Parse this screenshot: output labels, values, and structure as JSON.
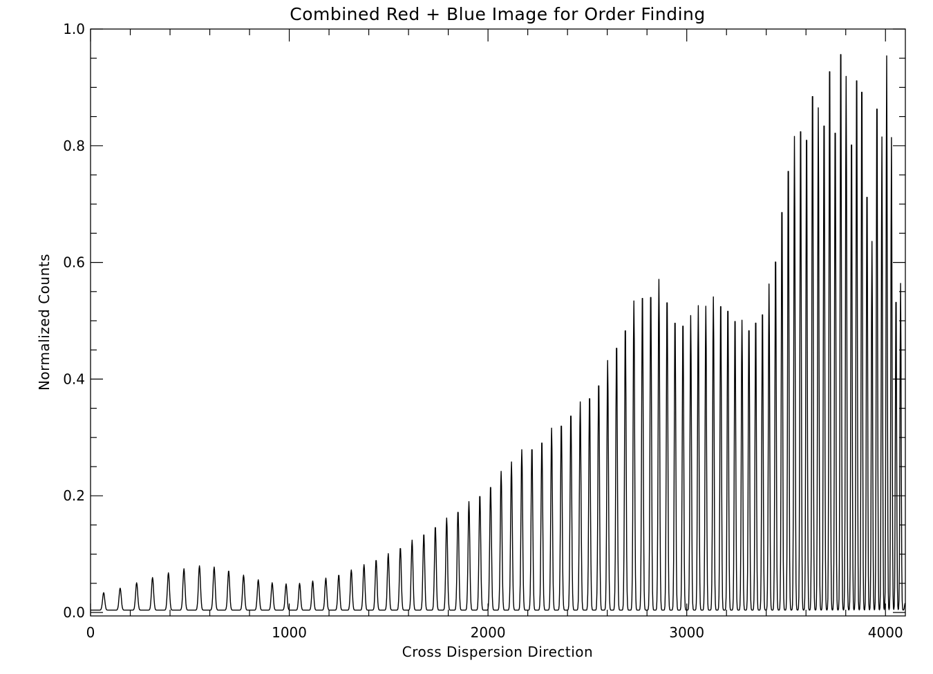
{
  "chart_data": {
    "type": "line",
    "title": "Combined Red + Blue Image for Order Finding",
    "xlabel": "Cross Dispersion Direction",
    "ylabel": "Normalized Counts",
    "xlim": [
      0,
      4100
    ],
    "ylim": [
      0,
      1.0
    ],
    "grid": false,
    "xticks": [
      0,
      1000,
      2000,
      3000,
      4000
    ],
    "xtick_labels": [
      "0",
      "1000",
      "2000",
      "3000",
      "4000"
    ],
    "yticks": [
      0.0,
      0.2,
      0.4,
      0.6,
      0.8,
      1.0
    ],
    "ytick_labels": [
      "0.0",
      "0.2",
      "0.4",
      "0.6",
      "0.8",
      "1.0"
    ],
    "line_color": "#000000",
    "series": [
      {
        "peaks_x": [
          66,
          149,
          232,
          312,
          392,
          470,
          548,
          622,
          695,
          770,
          844,
          914,
          984,
          1052,
          1118,
          1184,
          1249,
          1312,
          1376,
          1437,
          1498,
          1559,
          1618,
          1677,
          1735,
          1792,
          1849,
          1904,
          1959,
          2013,
          2066,
          2118,
          2170,
          2221,
          2271,
          2320,
          2369,
          2417,
          2464,
          2511,
          2557,
          2602,
          2647,
          2691,
          2734,
          2777,
          2819,
          2860,
          2901,
          2941,
          2981,
          3020,
          3058,
          3096,
          3134,
          3171,
          3207,
          3243,
          3278,
          3313,
          3347,
          3381,
          3414,
          3447,
          3479,
          3511,
          3542,
          3573,
          3603,
          3633,
          3662,
          3691,
          3719,
          3747,
          3775,
          3802,
          3829,
          3855,
          3881,
          3907,
          3932,
          3957,
          3982,
          4006,
          4030,
          4053,
          4076,
          4099
        ],
        "peaks_y": [
          0.03,
          0.038,
          0.047,
          0.056,
          0.064,
          0.071,
          0.076,
          0.074,
          0.068,
          0.06,
          0.052,
          0.047,
          0.045,
          0.046,
          0.05,
          0.055,
          0.061,
          0.069,
          0.078,
          0.087,
          0.097,
          0.108,
          0.12,
          0.132,
          0.145,
          0.158,
          0.172,
          0.186,
          0.2,
          0.216,
          0.238,
          0.254,
          0.275,
          0.283,
          0.295,
          0.312,
          0.325,
          0.343,
          0.357,
          0.374,
          0.397,
          0.428,
          0.464,
          0.495,
          0.53,
          0.553,
          0.555,
          0.567,
          0.546,
          0.51,
          0.505,
          0.505,
          0.522,
          0.521,
          0.537,
          0.541,
          0.533,
          0.515,
          0.497,
          0.499,
          0.513,
          0.528,
          0.559,
          0.623,
          0.712,
          0.786,
          0.812,
          0.858,
          0.843,
          0.922,
          0.861,
          0.87,
          0.968,
          0.858,
          1.0,
          0.915,
          0.838,
          0.954,
          0.934,
          0.745,
          0.632,
          0.905,
          0.811,
          0.95,
          0.81,
          0.557,
          0.56,
          0.012
        ]
      }
    ]
  }
}
